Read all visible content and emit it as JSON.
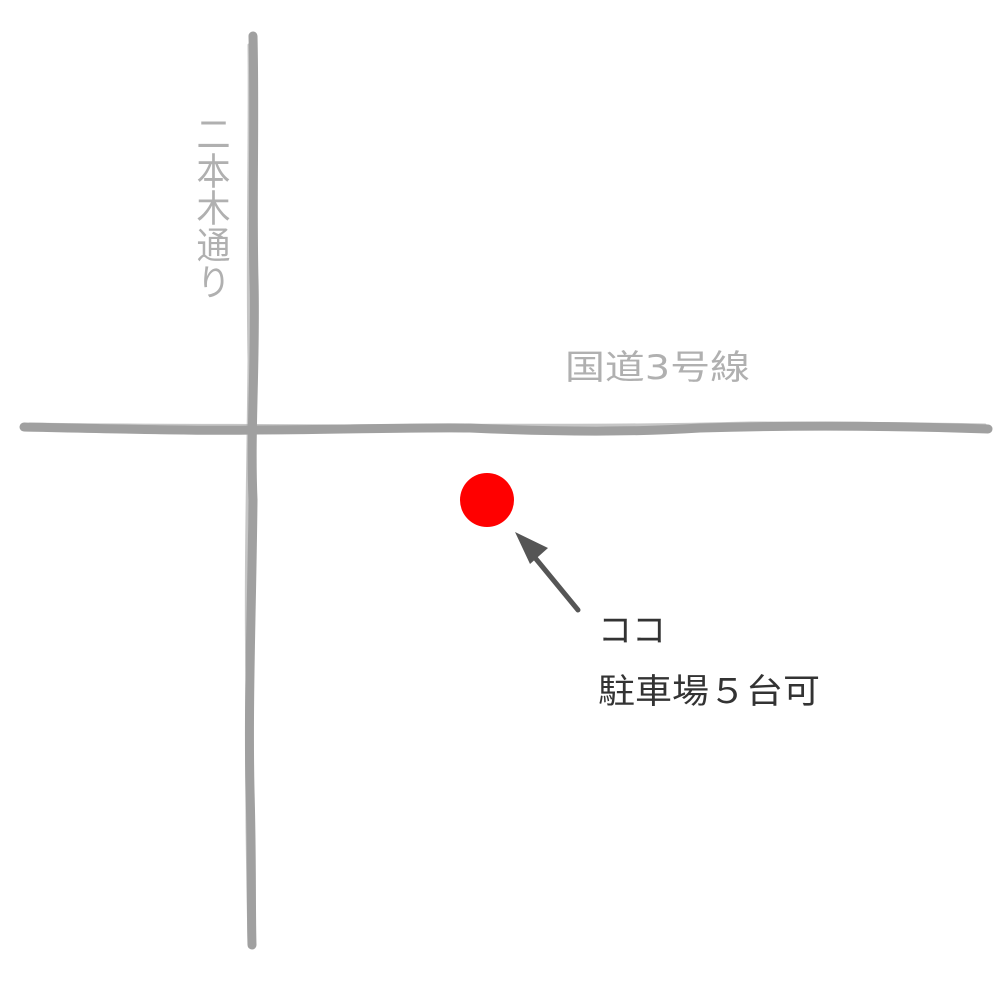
{
  "map": {
    "roads": [
      {
        "name": "国道3号線",
        "orientation": "horizontal"
      },
      {
        "name": "二本木通り",
        "orientation": "vertical"
      }
    ],
    "marker": {
      "label": "ココ",
      "note": "駐車場５台可"
    }
  },
  "colors": {
    "road": "#a0a0a0",
    "road_label": "#b0b0b0",
    "marker": "#ff0000",
    "arrow": "#555555",
    "text": "#333333"
  }
}
